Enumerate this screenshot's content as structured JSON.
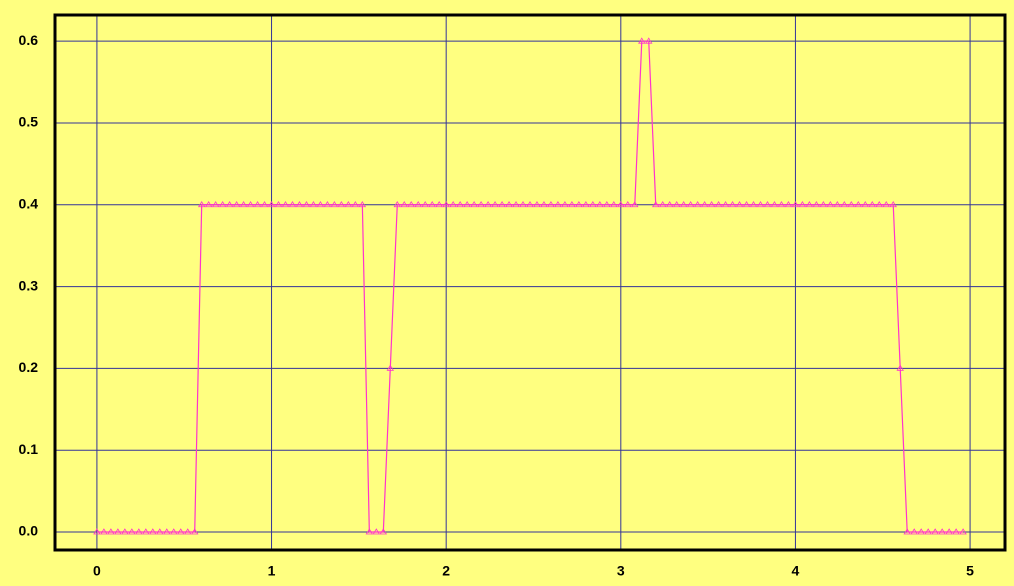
{
  "chart_data": {
    "type": "line",
    "x": [
      0,
      0.04,
      0.08,
      0.12,
      0.16,
      0.2,
      0.24,
      0.28,
      0.32,
      0.36,
      0.4,
      0.44,
      0.48,
      0.52,
      0.56,
      0.6,
      0.64,
      0.68,
      0.72,
      0.76,
      0.8,
      0.84,
      0.88,
      0.92,
      0.96,
      1,
      1.04,
      1.08,
      1.12,
      1.16,
      1.2,
      1.24,
      1.28,
      1.32,
      1.36,
      1.4,
      1.44,
      1.48,
      1.52,
      1.56,
      1.6,
      1.64,
      1.68,
      1.72,
      1.76,
      1.8,
      1.84,
      1.88,
      1.92,
      1.96,
      2,
      2.04,
      2.08,
      2.12,
      2.16,
      2.2,
      2.24,
      2.28,
      2.32,
      2.36,
      2.4,
      2.44,
      2.48,
      2.52,
      2.56,
      2.6,
      2.64,
      2.68,
      2.72,
      2.76,
      2.8,
      2.84,
      2.88,
      2.92,
      2.96,
      3,
      3.04,
      3.08,
      3.12,
      3.16,
      3.2,
      3.24,
      3.28,
      3.32,
      3.36,
      3.4,
      3.44,
      3.48,
      3.52,
      3.56,
      3.6,
      3.64,
      3.68,
      3.72,
      3.76,
      3.8,
      3.84,
      3.88,
      3.92,
      3.96,
      4,
      4.04,
      4.08,
      4.12,
      4.16,
      4.2,
      4.24,
      4.28,
      4.32,
      4.36,
      4.4,
      4.44,
      4.48,
      4.52,
      4.56,
      4.6,
      4.64,
      4.68,
      4.72,
      4.76,
      4.8,
      4.84,
      4.88,
      4.92,
      4.96
    ],
    "series": [
      {
        "color": "#ff33cc",
        "values": [
          0,
          0,
          0,
          0,
          0,
          0,
          0,
          0,
          0,
          0,
          0,
          0,
          0,
          0,
          0,
          0.4,
          0.4,
          0.4,
          0.4,
          0.4,
          0.4,
          0.4,
          0.4,
          0.4,
          0.4,
          0.4,
          0.4,
          0.4,
          0.4,
          0.4,
          0.4,
          0.4,
          0.4,
          0.4,
          0.4,
          0.4,
          0.4,
          0.4,
          0.4,
          0,
          0,
          0,
          0.2,
          0.4,
          0.4,
          0.4,
          0.4,
          0.4,
          0.4,
          0.4,
          0.4,
          0.4,
          0.4,
          0.4,
          0.4,
          0.4,
          0.4,
          0.4,
          0.4,
          0.4,
          0.4,
          0.4,
          0.4,
          0.4,
          0.4,
          0.4,
          0.4,
          0.4,
          0.4,
          0.4,
          0.4,
          0.4,
          0.4,
          0.4,
          0.4,
          0.4,
          0.4,
          0.4,
          0.6,
          0.6,
          0.4,
          0.4,
          0.4,
          0.4,
          0.4,
          0.4,
          0.4,
          0.4,
          0.4,
          0.4,
          0.4,
          0.4,
          0.4,
          0.4,
          0.4,
          0.4,
          0.4,
          0.4,
          0.4,
          0.4,
          0.4,
          0.4,
          0.4,
          0.4,
          0.4,
          0.4,
          0.4,
          0.4,
          0.4,
          0.4,
          0.4,
          0.4,
          0.4,
          0.4,
          0.4,
          0.2,
          0,
          0,
          0,
          0,
          0,
          0,
          0,
          0,
          0
        ]
      }
    ],
    "xlim": [
      -0.24,
      5.2
    ],
    "ylim": [
      -0.022,
      0.632
    ],
    "xticks": [
      0,
      1,
      2,
      3,
      4,
      5
    ],
    "yticks": [
      {
        "value": 0,
        "label": "0.0"
      },
      0.1,
      0.2,
      0.3,
      0.4,
      0.5,
      0.6
    ],
    "grid": true
  }
}
